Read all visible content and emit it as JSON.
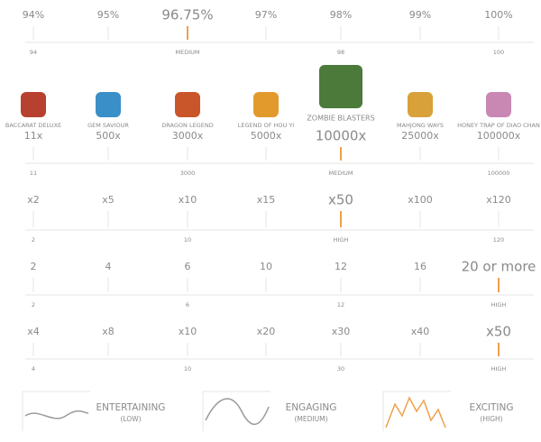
{
  "rtp": {
    "items": [
      "94%",
      "95%",
      "96.75%",
      "97%",
      "98%",
      "99%",
      "100%"
    ],
    "scale": [
      "94",
      null,
      "MEDIUM",
      null,
      "98",
      null,
      "100"
    ],
    "highlight": 2
  },
  "games": {
    "items": [
      {
        "name": "BACCARAT DELUXE",
        "multiplier": "11x",
        "icon_color": "#b8402e"
      },
      {
        "name": "GEM SAVIOUR",
        "multiplier": "500x",
        "icon_color": "#3a8fc9"
      },
      {
        "name": "DRAGON LEGEND",
        "multiplier": "3000x",
        "icon_color": "#c9562a"
      },
      {
        "name": "LEGEND OF HOU YI",
        "multiplier": "5000x",
        "icon_color": "#e39a2c"
      },
      {
        "name": "ZOMBIE BLASTERS",
        "multiplier": "10000x",
        "icon_color": "#4c7a3a"
      },
      {
        "name": "MAHJONG WAYS",
        "multiplier": "25000x",
        "icon_color": "#d9a13a"
      },
      {
        "name": "HONEY TRAP OF DIAO CHAN",
        "multiplier": "100000x",
        "icon_color": "#c987b4"
      }
    ],
    "scale": [
      "11",
      null,
      "3000",
      null,
      "MEDIUM",
      null,
      "100000"
    ],
    "highlight": 4
  },
  "row3": {
    "items": [
      "x2",
      "x5",
      "x10",
      "x15",
      "x50",
      "x100",
      "x120"
    ],
    "scale": [
      "2",
      null,
      "10",
      null,
      "HIGH",
      null,
      "120"
    ],
    "highlight": 4
  },
  "row4": {
    "items": [
      "2",
      "4",
      "6",
      "10",
      "12",
      "16",
      "20 or more"
    ],
    "scale": [
      "2",
      null,
      "6",
      null,
      "12",
      null,
      "HIGH"
    ],
    "highlight": 6
  },
  "row5": {
    "items": [
      "x4",
      "x8",
      "x10",
      "x20",
      "x30",
      "x40",
      "x50"
    ],
    "scale": [
      "4",
      null,
      "10",
      null,
      "30",
      null,
      "HIGH"
    ],
    "highlight": 6
  },
  "volatility": {
    "items": [
      {
        "label": "ENTERTAINING",
        "level": "(LOW)"
      },
      {
        "label": "ENGAGING",
        "level": "(MEDIUM)"
      },
      {
        "label": "EXCITING",
        "level": "(HIGH)"
      }
    ],
    "highlight": 2
  }
}
